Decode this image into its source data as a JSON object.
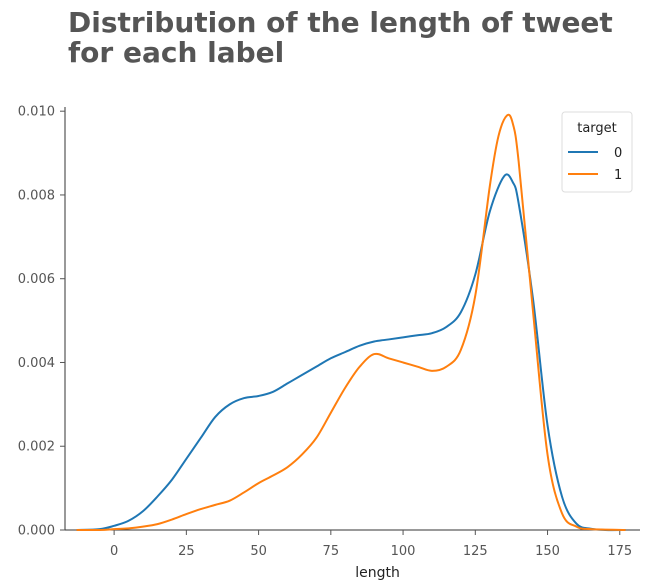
{
  "chart_data": {
    "type": "line",
    "title": "Distribution of the length of tweet for each label",
    "xlabel": "length",
    "ylabel": "",
    "xlim": [
      -17,
      182
    ],
    "ylim": [
      0,
      0.0101
    ],
    "xticks": [
      0,
      25,
      50,
      75,
      100,
      125,
      150,
      175
    ],
    "yticks": [
      0.0,
      0.002,
      0.004,
      0.006,
      0.008,
      0.01
    ],
    "xtick_labels": [
      "0",
      "25",
      "50",
      "75",
      "100",
      "125",
      "150",
      "175"
    ],
    "ytick_labels": [
      "0.000",
      "0.002",
      "0.004",
      "0.006",
      "0.008",
      "0.010"
    ],
    "grid": false,
    "legend": {
      "title": "target",
      "placement": "top-right"
    },
    "series": [
      {
        "name": "0",
        "color": "#1f77b4",
        "x": [
          -13,
          -5,
          0,
          5,
          10,
          15,
          20,
          25,
          30,
          35,
          40,
          45,
          50,
          55,
          60,
          65,
          70,
          75,
          80,
          85,
          90,
          95,
          100,
          105,
          110,
          115,
          120,
          125,
          130,
          135,
          138,
          140,
          145,
          150,
          155,
          160,
          165,
          170,
          177
        ],
        "y": [
          0.0,
          2e-05,
          0.0001,
          0.00022,
          0.00045,
          0.0008,
          0.0012,
          0.0017,
          0.0022,
          0.0027,
          0.003,
          0.00315,
          0.0032,
          0.0033,
          0.0035,
          0.0037,
          0.0039,
          0.0041,
          0.00425,
          0.0044,
          0.0045,
          0.00455,
          0.0046,
          0.00465,
          0.0047,
          0.00485,
          0.0052,
          0.0061,
          0.0076,
          0.00845,
          0.0083,
          0.0078,
          0.0055,
          0.0025,
          0.0008,
          0.00015,
          3e-05,
          0.0,
          0.0
        ]
      },
      {
        "name": "1",
        "color": "#ff7f0e",
        "x": [
          -13,
          -5,
          0,
          5,
          10,
          15,
          20,
          25,
          30,
          35,
          40,
          45,
          50,
          55,
          60,
          65,
          70,
          75,
          80,
          85,
          90,
          95,
          100,
          105,
          110,
          115,
          120,
          125,
          130,
          133,
          136,
          138,
          140,
          145,
          150,
          155,
          160,
          165,
          177
        ],
        "y": [
          0.0,
          0.0,
          2e-05,
          4e-05,
          8e-05,
          0.00014,
          0.00025,
          0.00038,
          0.0005,
          0.0006,
          0.0007,
          0.0009,
          0.00112,
          0.0013,
          0.0015,
          0.0018,
          0.0022,
          0.0028,
          0.0034,
          0.0039,
          0.0042,
          0.0041,
          0.004,
          0.0039,
          0.0038,
          0.0039,
          0.0043,
          0.0056,
          0.0082,
          0.0094,
          0.0099,
          0.0097,
          0.0088,
          0.0052,
          0.0018,
          0.0004,
          8e-05,
          2e-05,
          0.0
        ]
      }
    ]
  }
}
